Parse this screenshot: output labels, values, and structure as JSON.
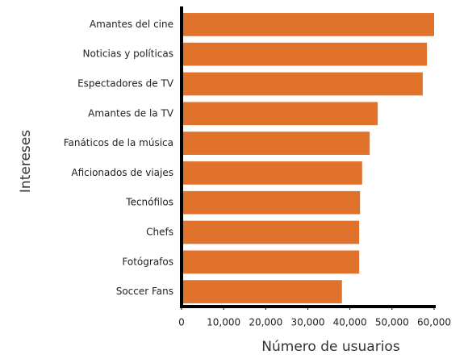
{
  "chart_data": {
    "type": "barh",
    "xlabel": "Número de usuarios",
    "ylabel": "Intereses",
    "categories": [
      "Amantes del cine",
      "Noticias y políticas",
      "Espectadores de TV",
      "Amantes de la TV",
      "Fanáticos de la música",
      "Aficionados de viajes",
      "Tecnófilos",
      "Chefs",
      "Fotógrafos",
      "Soccer Fans"
    ],
    "values": [
      60000,
      58300,
      57300,
      46600,
      44700,
      42900,
      42400,
      42200,
      42200,
      38100
    ],
    "color": "#e0722c",
    "xlim": [
      0,
      60000
    ],
    "xticks": [
      0,
      {
        "value": 10000,
        "label": "10,000"
      },
      {
        "value": 20000,
        "label": "20,000"
      },
      {
        "value": 30000,
        "label": "30,000"
      },
      {
        "value": 40000,
        "label": "40,000"
      },
      {
        "value": 50000,
        "label": "50,000"
      },
      {
        "value": 60000,
        "label": "60,000"
      }
    ],
    "grid": false
  }
}
